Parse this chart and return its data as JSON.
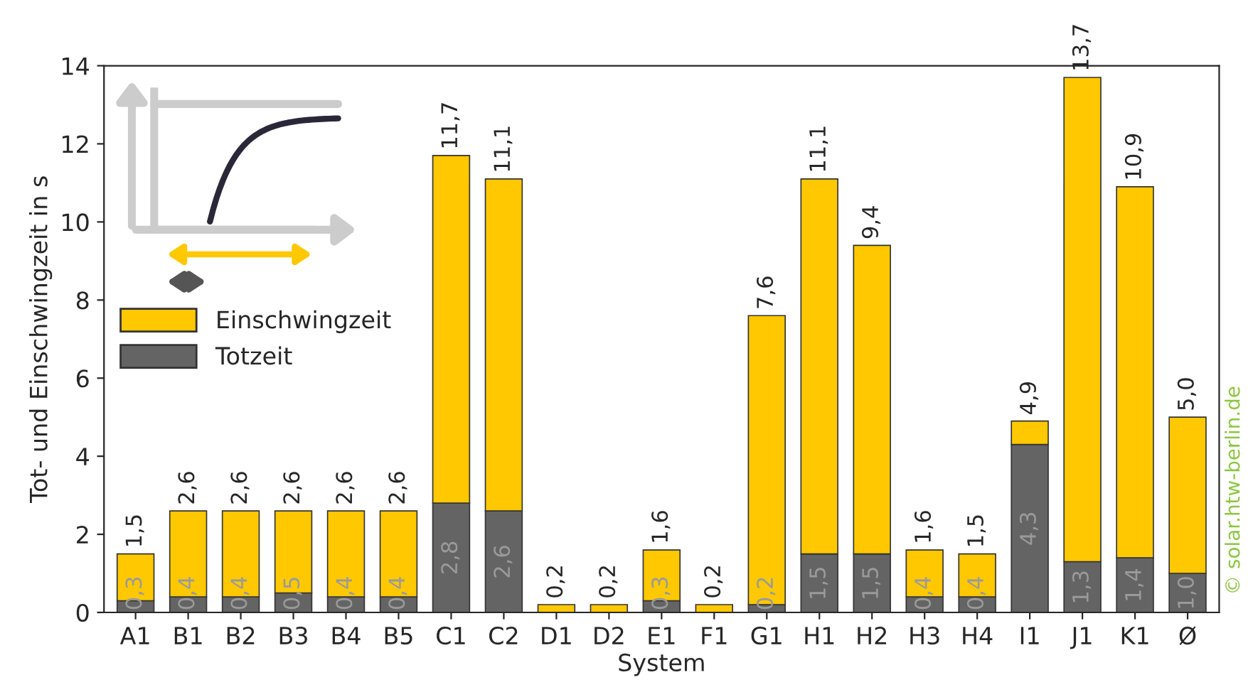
{
  "chart_data": {
    "type": "bar",
    "stacked": true,
    "xlabel": "System",
    "ylabel": "Tot- und Einschwingzeit in s",
    "categories": [
      "A1",
      "B1",
      "B2",
      "B3",
      "B4",
      "B5",
      "C1",
      "C2",
      "D1",
      "D2",
      "E1",
      "F1",
      "G1",
      "H1",
      "H2",
      "H3",
      "H4",
      "I1",
      "J1",
      "K1",
      "Ø"
    ],
    "series": [
      {
        "name": "Totzeit",
        "color": "#646464",
        "values": [
          0.3,
          0.4,
          0.4,
          0.5,
          0.4,
          0.4,
          2.8,
          2.6,
          0,
          0,
          0.3,
          0,
          0.2,
          1.5,
          1.5,
          0.4,
          0.4,
          4.3,
          1.3,
          1.4,
          1.0
        ],
        "value_labels": [
          "0,3",
          "0,4",
          "0,4",
          "0,5",
          "0,4",
          "0,4",
          "2,8",
          "2,6",
          null,
          null,
          "0,3",
          null,
          "0,2",
          "1,5",
          "1,5",
          "0,4",
          "0,4",
          "4,3",
          "1,3",
          "1,4",
          "1,0"
        ]
      },
      {
        "name": "Einschwingzeit",
        "color": "#ffc800",
        "values": [
          1.2,
          2.2,
          2.2,
          2.1,
          2.2,
          2.2,
          8.9,
          8.5,
          0.2,
          0.2,
          1.3,
          0.2,
          7.4,
          9.6,
          7.9,
          1.2,
          1.1,
          0.6,
          12.4,
          9.5,
          4.0
        ]
      }
    ],
    "totals": [
      "1,5",
      "2,6",
      "2,6",
      "2,6",
      "2,6",
      "2,6",
      "11,7",
      "11,1",
      "0,2",
      "0,2",
      "1,6",
      "0,2",
      "7,6",
      "11,1",
      "9,4",
      "1,6",
      "1,5",
      "4,9",
      "13,7",
      "10,9",
      "5,0"
    ],
    "ylim": [
      0,
      14
    ],
    "yticks": [
      0,
      2,
      4,
      6,
      8,
      10,
      12,
      14
    ],
    "grid": false,
    "legend": "left",
    "annotations": [
      "© solar.htw-berlin.de"
    ]
  }
}
